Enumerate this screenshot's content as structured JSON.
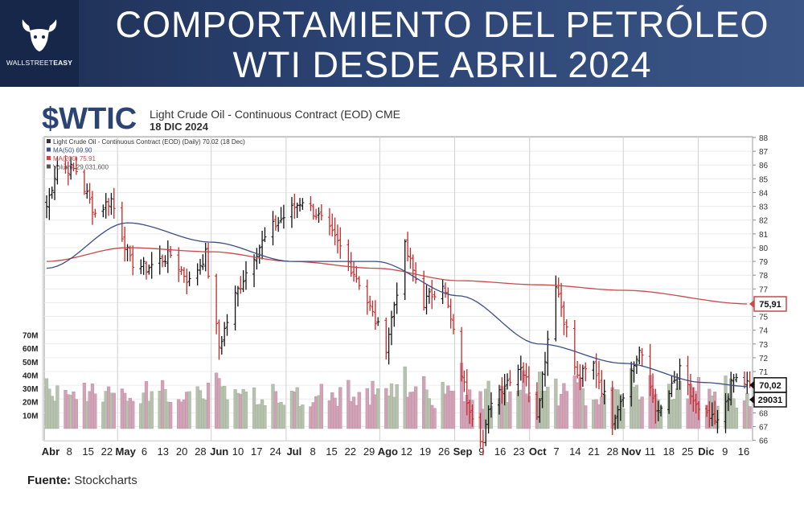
{
  "header": {
    "title_line1": "COMPORTAMIENTO DEL PETRÓLEO",
    "title_line2": "WTI DESDE ABRIL 2024",
    "logo_text_a": "WALLSTREET",
    "logo_text_b": "EASY",
    "logo_icon": "bull-icon"
  },
  "chart_header": {
    "ticker": "$WTIC",
    "description": "Light Crude Oil - Continuous Contract (EOD) CME",
    "date": "18 DIC 2024"
  },
  "source": {
    "label": "Fuente:",
    "value": "Stockcharts"
  },
  "colors": {
    "banner": "#2c4474",
    "up_bar": "#111111",
    "down_bar": "#c62828",
    "ma50": "#3a4f86",
    "ma200": "#c8494a",
    "volume_up": "#b6c2ad",
    "volume_down": "#d2a2b6"
  },
  "chart_data": {
    "type": "line",
    "chart_style": "ohlc-bars",
    "legend": [
      "Light Crude Oil - Continuous Contract (EOD) (Daily) 70.02 (18 Dec)",
      "MA(50) 69.90",
      "MA(200) 75.91",
      "Volume 29,031,600"
    ],
    "legend_placement": "top-left",
    "price_axis": {
      "side": "right",
      "ylim": [
        65,
        88
      ],
      "ticks": [
        66,
        67,
        68,
        69,
        70,
        71,
        72,
        73,
        74,
        75,
        76,
        77,
        78,
        79,
        80,
        81,
        82,
        83,
        84,
        85,
        86,
        87,
        88
      ]
    },
    "volume_axis": {
      "side": "left",
      "ticks": [
        "10M",
        "20M",
        "30M",
        "40M",
        "50M",
        "60M",
        "70M"
      ]
    },
    "x_tick_labels": [
      "Abr",
      "8",
      "15",
      "22",
      "May",
      "6",
      "13",
      "20",
      "28",
      "Jun",
      "10",
      "17",
      "24",
      "Jul",
      "8",
      "15",
      "22",
      "29",
      "Ago",
      "12",
      "19",
      "26",
      "Sep",
      "9",
      "16",
      "23",
      "Oct",
      "7",
      "14",
      "21",
      "28",
      "Nov",
      "11",
      "18",
      "25",
      "Dic",
      "9",
      "16"
    ],
    "anchors": [
      {
        "date": "2024-04-01",
        "price": 83.0
      },
      {
        "date": "2024-04-05",
        "price": 86.0
      },
      {
        "date": "2024-04-12",
        "price": 85.6
      },
      {
        "date": "2024-04-19",
        "price": 82.5
      },
      {
        "date": "2024-04-25",
        "price": 83.5
      },
      {
        "date": "2024-05-02",
        "price": 79.0
      },
      {
        "date": "2024-05-08",
        "price": 78.5
      },
      {
        "date": "2024-05-17",
        "price": 79.5
      },
      {
        "date": "2024-05-24",
        "price": 77.5
      },
      {
        "date": "2024-05-30",
        "price": 79.5
      },
      {
        "date": "2024-06-04",
        "price": 72.8
      },
      {
        "date": "2024-06-10",
        "price": 76.5
      },
      {
        "date": "2024-06-17",
        "price": 79.5
      },
      {
        "date": "2024-06-24",
        "price": 81.5
      },
      {
        "date": "2024-07-05",
        "price": 83.5
      },
      {
        "date": "2024-07-12",
        "price": 82.0
      },
      {
        "date": "2024-07-19",
        "price": 80.0
      },
      {
        "date": "2024-07-26",
        "price": 77.5
      },
      {
        "date": "2024-08-05",
        "price": 72.8
      },
      {
        "date": "2024-08-12",
        "price": 80.0
      },
      {
        "date": "2024-08-19",
        "price": 76.0
      },
      {
        "date": "2024-08-26",
        "price": 77.5
      },
      {
        "date": "2024-09-04",
        "price": 69.0
      },
      {
        "date": "2024-09-10",
        "price": 65.8
      },
      {
        "date": "2024-09-13",
        "price": 69.0
      },
      {
        "date": "2024-09-24",
        "price": 71.5
      },
      {
        "date": "2024-09-30",
        "price": 68.0
      },
      {
        "date": "2024-10-07",
        "price": 77.5
      },
      {
        "date": "2024-10-15",
        "price": 70.5
      },
      {
        "date": "2024-10-21",
        "price": 71.5
      },
      {
        "date": "2024-10-28",
        "price": 67.5
      },
      {
        "date": "2024-11-07",
        "price": 72.5
      },
      {
        "date": "2024-11-14",
        "price": 67.8
      },
      {
        "date": "2024-11-22",
        "price": 71.0
      },
      {
        "date": "2024-11-29",
        "price": 68.0
      },
      {
        "date": "2024-12-06",
        "price": 67.2
      },
      {
        "date": "2024-12-12",
        "price": 70.5
      },
      {
        "date": "2024-12-18",
        "price": 70.02
      }
    ],
    "ma50": [
      {
        "date": "2024-04-01",
        "price": 78.5
      },
      {
        "date": "2024-05-01",
        "price": 81.8
      },
      {
        "date": "2024-06-01",
        "price": 80.4
      },
      {
        "date": "2024-07-01",
        "price": 79.0
      },
      {
        "date": "2024-08-01",
        "price": 79.0
      },
      {
        "date": "2024-09-01",
        "price": 76.5
      },
      {
        "date": "2024-10-01",
        "price": 73.0
      },
      {
        "date": "2024-11-01",
        "price": 71.6
      },
      {
        "date": "2024-12-01",
        "price": 70.2
      },
      {
        "date": "2024-12-18",
        "price": 69.9
      }
    ],
    "ma200": [
      {
        "date": "2024-04-01",
        "price": 79.0
      },
      {
        "date": "2024-05-01",
        "price": 80.0
      },
      {
        "date": "2024-06-01",
        "price": 79.7
      },
      {
        "date": "2024-07-01",
        "price": 79.0
      },
      {
        "date": "2024-08-01",
        "price": 78.5
      },
      {
        "date": "2024-09-01",
        "price": 77.6
      },
      {
        "date": "2024-10-01",
        "price": 77.3
      },
      {
        "date": "2024-11-01",
        "price": 76.9
      },
      {
        "date": "2024-12-18",
        "price": 75.91
      }
    ],
    "last_price_label": "70,02",
    "ma200_label": "75,91",
    "volume_label": "29031",
    "last_volume_millions": 29
  }
}
